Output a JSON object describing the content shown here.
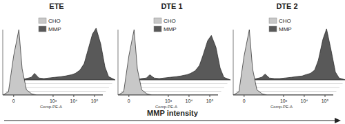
{
  "chart_data": [
    {
      "type": "area",
      "title": "ETE",
      "x_label": "Comp-PE-A",
      "x": [
        -30,
        -10,
        0,
        10,
        20,
        40,
        80,
        150,
        300,
        600,
        1000,
        2000,
        3000,
        5000,
        8000,
        12000,
        20000,
        30000,
        50000,
        80000,
        120000,
        250000
      ],
      "series": [
        {
          "name": "CHO",
          "color": "#c8c8c8",
          "values": [
            0,
            5,
            60,
            100,
            40,
            8,
            2,
            0,
            0,
            0,
            0,
            0,
            0,
            0,
            0,
            0,
            0,
            0,
            0,
            0,
            0,
            0
          ]
        },
        {
          "name": "MMP",
          "color": "#595959",
          "values": [
            0,
            0,
            2,
            4,
            10,
            3,
            2,
            3,
            4,
            5,
            6,
            8,
            10,
            15,
            25,
            45,
            70,
            79,
            55,
            20,
            5,
            0
          ]
        }
      ],
      "xlim": [
        -30,
        250000
      ],
      "xticks": [
        0,
        {
          "value": 1000,
          "label": "10³"
        },
        {
          "value": 10000,
          "label": "10⁴"
        },
        {
          "value": 100000,
          "label": "10⁵"
        }
      ],
      "ylim": [
        0,
        100
      ],
      "tick_labels": "x",
      "legend": "upper left"
    },
    {
      "type": "area",
      "title": "DTE 1",
      "x_label": "Comp-PE-A",
      "x": [
        -30,
        -10,
        0,
        10,
        20,
        40,
        80,
        150,
        300,
        600,
        1000,
        2000,
        3000,
        5000,
        8000,
        12000,
        20000,
        30000,
        50000,
        80000,
        120000,
        250000
      ],
      "series": [
        {
          "name": "CHO",
          "color": "#c8c8c8",
          "values": [
            0,
            5,
            60,
            100,
            40,
            8,
            2,
            0,
            0,
            0,
            0,
            0,
            0,
            0,
            0,
            0,
            0,
            0,
            0,
            0,
            0,
            0
          ]
        },
        {
          "name": "MMP",
          "color": "#595959",
          "values": [
            0,
            0,
            2,
            3,
            8,
            3,
            2,
            3,
            4,
            5,
            6,
            8,
            10,
            14,
            22,
            38,
            60,
            68,
            50,
            18,
            4,
            0
          ]
        }
      ],
      "xlim": [
        -30,
        250000
      ],
      "xticks": [
        0,
        {
          "value": 1000,
          "label": "10³"
        },
        {
          "value": 10000,
          "label": "10⁴"
        },
        {
          "value": 100000,
          "label": "10⁵"
        }
      ],
      "ylim": [
        0,
        100
      ],
      "tick_labels": "x",
      "legend": "upper left"
    },
    {
      "type": "area",
      "title": "DTE 2",
      "x_label": "Comp-PE-A",
      "x": [
        -30,
        -10,
        0,
        10,
        20,
        40,
        80,
        150,
        300,
        600,
        1000,
        2000,
        3000,
        5000,
        8000,
        12000,
        20000,
        30000,
        50000,
        80000,
        120000,
        250000
      ],
      "series": [
        {
          "name": "CHO",
          "color": "#c8c8c8",
          "values": [
            0,
            5,
            60,
            100,
            40,
            8,
            2,
            0,
            0,
            0,
            0,
            0,
            0,
            0,
            0,
            0,
            0,
            0,
            0,
            0,
            0,
            0
          ]
        },
        {
          "name": "MMP",
          "color": "#595959",
          "values": [
            0,
            0,
            2,
            4,
            9,
            3,
            2,
            2,
            3,
            4,
            5,
            6,
            8,
            10,
            15,
            30,
            62,
            78,
            45,
            12,
            3,
            0
          ]
        }
      ],
      "xlim": [
        -30,
        250000
      ],
      "xticks": [
        0,
        {
          "value": 1000,
          "label": "10³"
        },
        {
          "value": 10000,
          "label": "10⁴"
        },
        {
          "value": 100000,
          "label": "10⁵"
        }
      ],
      "ylim": [
        0,
        100
      ],
      "tick_labels": "x",
      "legend": "upper left"
    }
  ],
  "footer": {
    "label": "MMP intensity"
  }
}
